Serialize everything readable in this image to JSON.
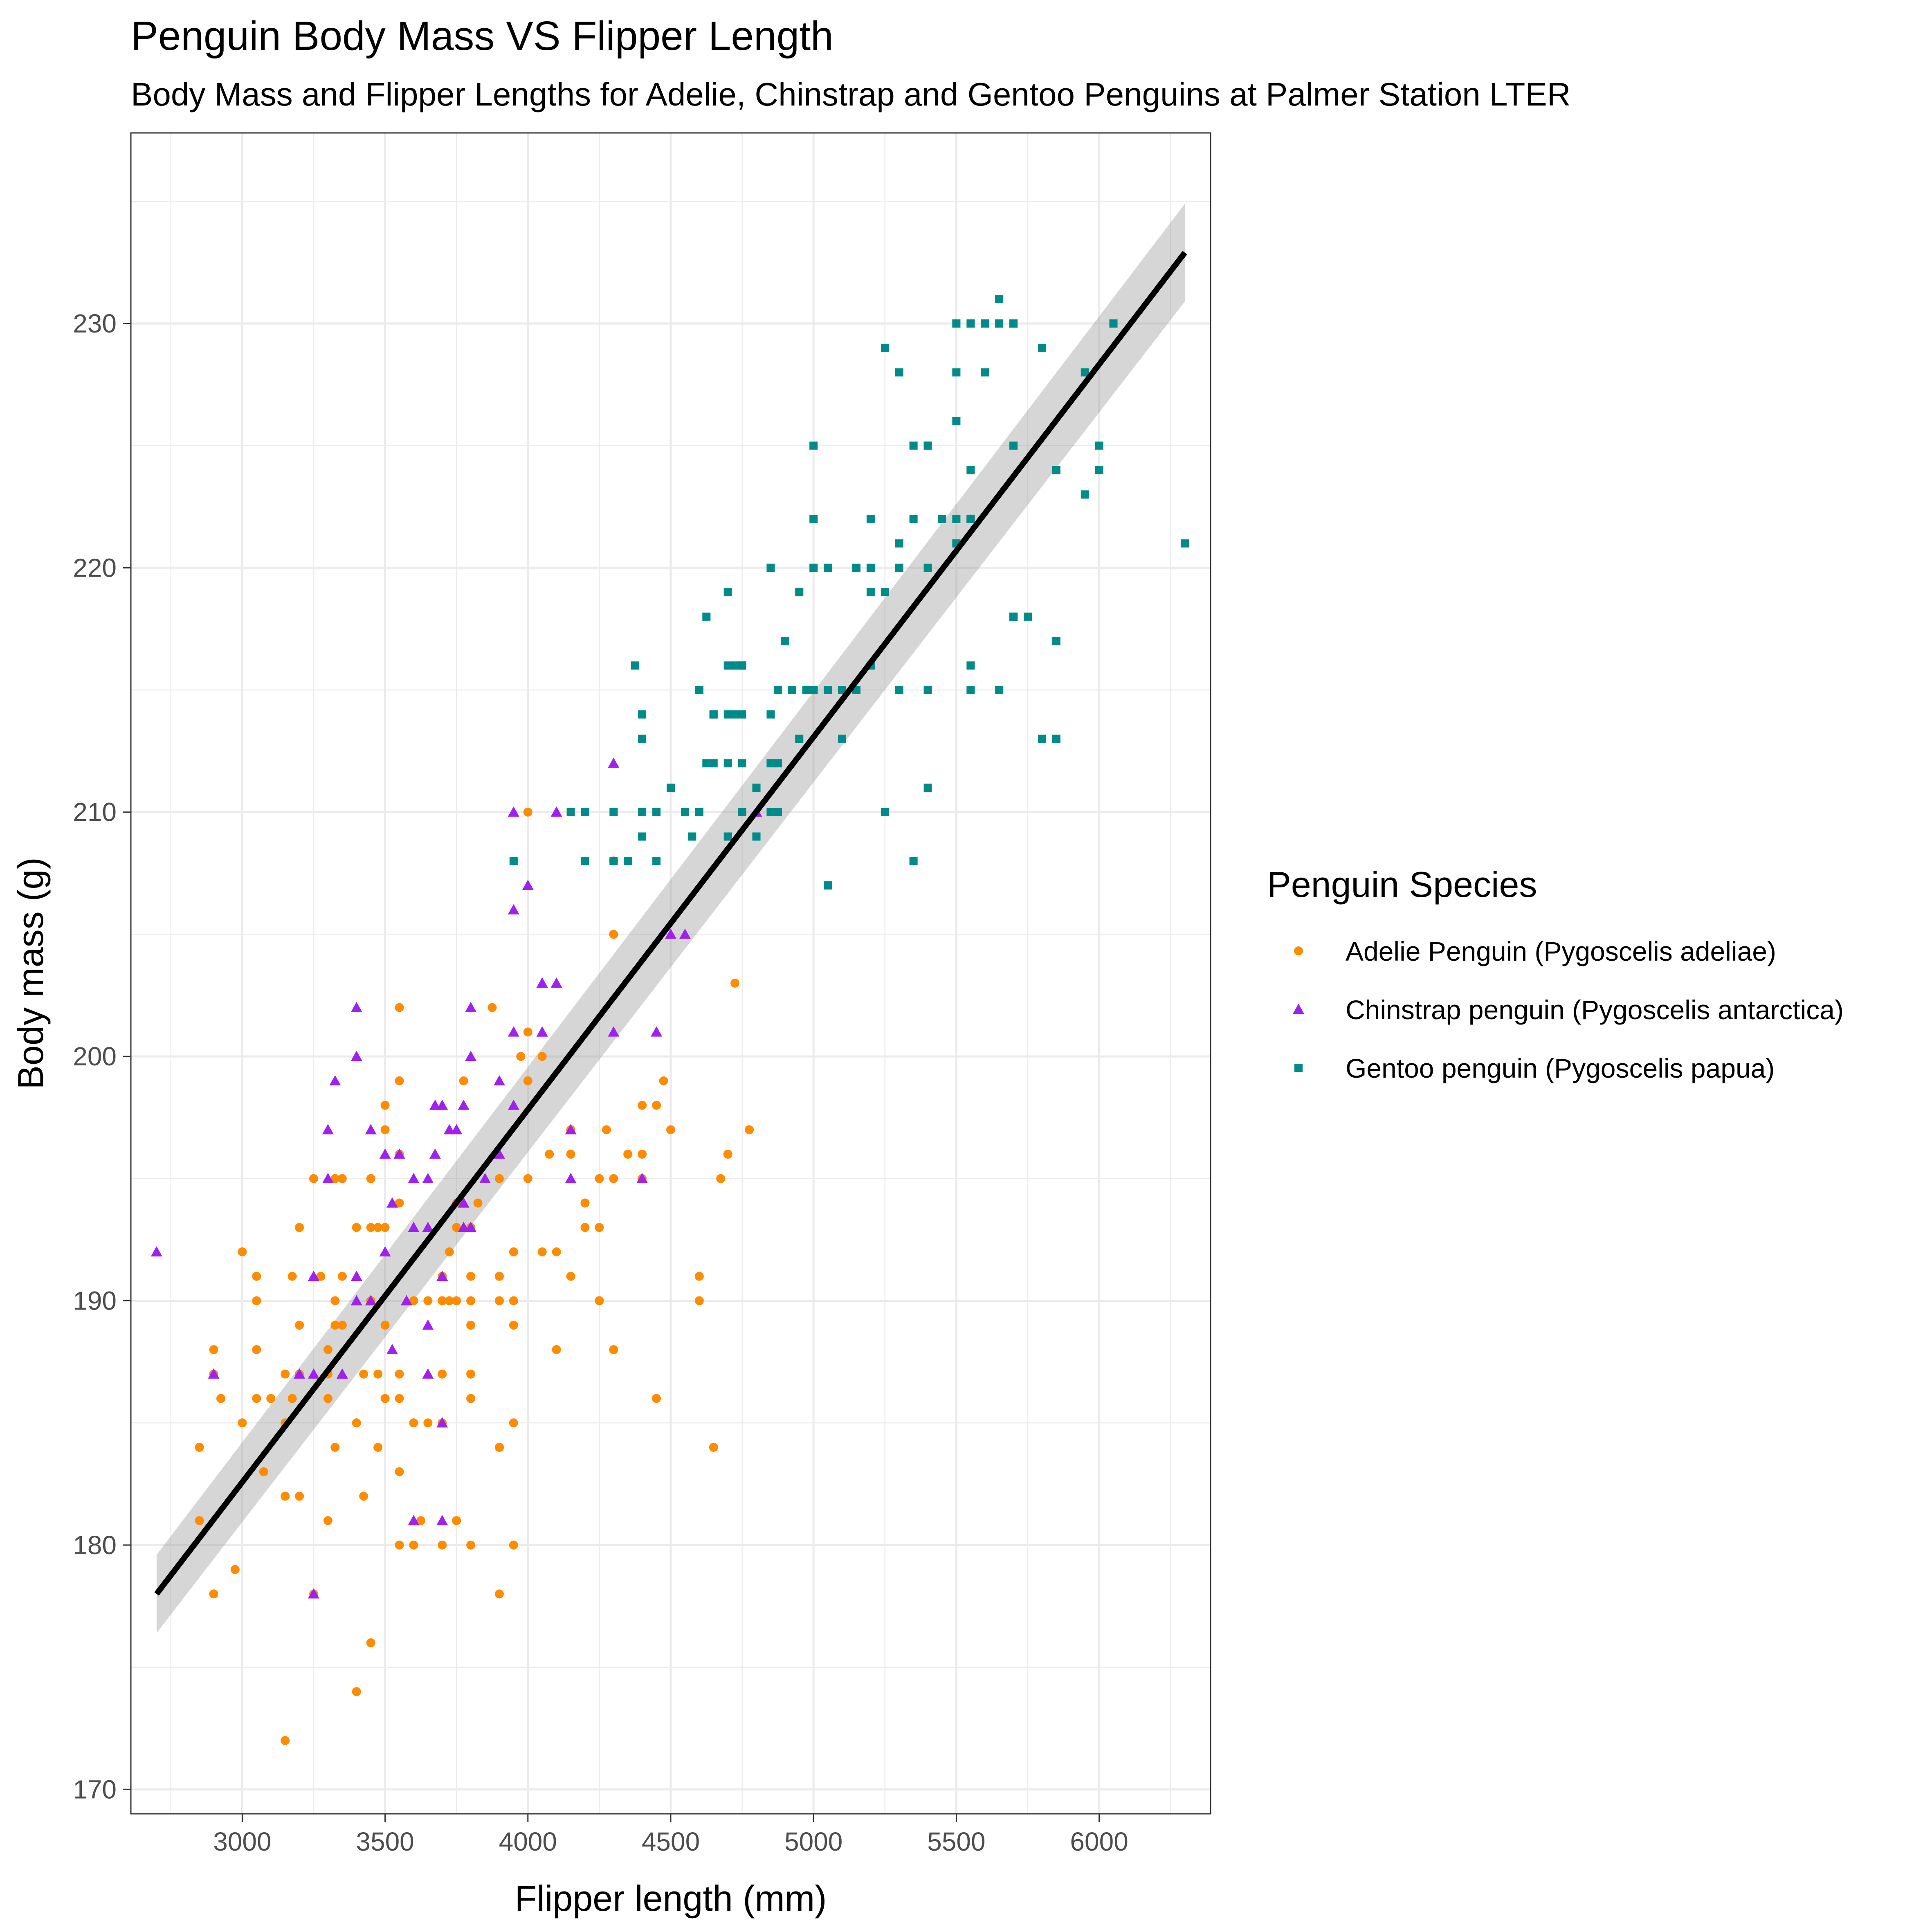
{
  "chart_data": {
    "type": "scatter",
    "title": "Penguin Body Mass VS Flipper Length",
    "subtitle": "Body Mass and Flipper Lengths for Adelie, Chinstrap and Gentoo Penguins at Palmer Station LTER",
    "xlabel": "Flipper length (mm)",
    "ylabel": "Body mass (g)",
    "xlim": [
      2610,
      6390
    ],
    "ylim": [
      169,
      237.8
    ],
    "x_ticks": [
      3000,
      3500,
      4000,
      4500,
      5000,
      5500,
      6000
    ],
    "y_ticks": [
      170,
      180,
      190,
      200,
      210,
      220,
      230
    ],
    "grid": true,
    "legend": {
      "title": "Penguin Species",
      "position": "right"
    },
    "fit_line": {
      "type": "linear",
      "x": [
        2700,
        6300
      ],
      "y": [
        178.0,
        232.9
      ],
      "ci_halfwidth": [
        1.6,
        2.0
      ],
      "color": "#000000",
      "band_color": "#999999"
    },
    "series": [
      {
        "name": "Adelie Penguin (Pygoscelis adeliae)",
        "color": "#FF8C00",
        "shape": "circle",
        "x": [
          3750,
          3800,
          3250,
          3450,
          3650,
          3625,
          4675,
          3475,
          4250,
          3300,
          3700,
          3200,
          3800,
          4400,
          3700,
          3450,
          4500,
          3325,
          4200,
          3400,
          3600,
          3800,
          3950,
          3800,
          3800,
          3550,
          3200,
          3150,
          3950,
          3250,
          3900,
          3300,
          3900,
          3325,
          4150,
          3950,
          3550,
          3300,
          4650,
          3150,
          3900,
          3100,
          4400,
          3000,
          4600,
          3425,
          2975,
          3450,
          4150,
          3500,
          4300,
          3450,
          4050,
          2900,
          3700,
          3550,
          3800,
          2850,
          3750,
          3150,
          4400,
          3600,
          4050,
          2850,
          3950,
          3350,
          4100,
          3050,
          4450,
          3600,
          3900,
          3550,
          4150,
          3700,
          4250,
          3700,
          3900,
          3550,
          4000,
          3200,
          4700,
          3800,
          4200,
          3350,
          3550,
          3800,
          3500,
          3950,
          3600,
          3550,
          4300,
          3400,
          4450,
          3300,
          4300,
          3700,
          4350,
          2900,
          4100,
          3725,
          4725,
          3075,
          4250,
          2925,
          3550,
          3750,
          3900,
          3175,
          4775,
          3825,
          4600,
          3200,
          4275,
          3900,
          4075,
          2900,
          3775,
          3350,
          3325,
          3150,
          3500,
          3450,
          3875,
          3050,
          4000,
          3275,
          4300,
          3050,
          4000,
          3325,
          3500,
          3500,
          4475,
          3425,
          3900,
          3175,
          3975,
          3400,
          4250,
          3400,
          3475,
          3050,
          3725,
          3000,
          3650,
          4250,
          3475,
          3450,
          3750,
          3700,
          4000
        ],
        "y": [
          181,
          186,
          195,
          193,
          190,
          181,
          195,
          193,
          190,
          186,
          180,
          182,
          191,
          198,
          185,
          195,
          197,
          184,
          194,
          174,
          180,
          189,
          185,
          180,
          187,
          183,
          187,
          172,
          180,
          178,
          178,
          188,
          184,
          195,
          196,
          190,
          180,
          181,
          184,
          182,
          195,
          186,
          196,
          185,
          190,
          182,
          179,
          190,
          191,
          186,
          188,
          190,
          200,
          187,
          191,
          186,
          193,
          181,
          194,
          185,
          195,
          185,
          192,
          184,
          192,
          195,
          188,
          190,
          198,
          190,
          190,
          196,
          197,
          190,
          195,
          191,
          184,
          187,
          195,
          189,
          196,
          187,
          193,
          191,
          194,
          190,
          189,
          189,
          190,
          202,
          205,
          185,
          186,
          187,
          208,
          190,
          196,
          178,
          192,
          192,
          203,
          183,
          190,
          186,
          199,
          190,
          191,
          186,
          197,
          194,
          191,
          193,
          197,
          191,
          196,
          188,
          199,
          189,
          189,
          187,
          198,
          176,
          202,
          186,
          199,
          191,
          195,
          191,
          210,
          190,
          197,
          193,
          199,
          187,
          190,
          191,
          200,
          185,
          193,
          193,
          187,
          188,
          190,
          192,
          185,
          190,
          184,
          195,
          193,
          187,
          201
        ]
      },
      {
        "name": "Chinstrap penguin (Pygoscelis antarctica)",
        "color": "#A020F0",
        "shape": "triangle",
        "x": [
          3500,
          3900,
          3650,
          3525,
          3725,
          3950,
          3250,
          3750,
          4150,
          3700,
          3800,
          3775,
          3700,
          4050,
          3575,
          4050,
          3300,
          3700,
          3450,
          4400,
          3600,
          3400,
          2900,
          3800,
          3300,
          4150,
          3400,
          3800,
          3700,
          4550,
          3200,
          4300,
          3350,
          4100,
          3600,
          3900,
          3850,
          4800,
          2700,
          4500,
          3950,
          3650,
          3550,
          3500,
          3675,
          4450,
          3400,
          4300,
          3250,
          3675,
          3325,
          3950,
          3600,
          4050,
          3350,
          3450,
          3250,
          4050,
          3800,
          3525,
          3950,
          3650,
          3650,
          4000,
          3400,
          3775,
          4100,
          3775
        ],
        "y": [
          192,
          196,
          193,
          188,
          197,
          198,
          178,
          197,
          195,
          198,
          193,
          194,
          185,
          201,
          190,
          201,
          197,
          181,
          190,
          195,
          181,
          191,
          187,
          193,
          195,
          197,
          200,
          200,
          191,
          205,
          187,
          201,
          187,
          203,
          195,
          199,
          195,
          210,
          192,
          205,
          210,
          187,
          196,
          196,
          196,
          201,
          190,
          212,
          187,
          198,
          199,
          201,
          193,
          203,
          187,
          197,
          191,
          203,
          202,
          194,
          206,
          189,
          195,
          207,
          202,
          193,
          210,
          198
        ]
      },
      {
        "name": "Gentoo penguin (Pygoscelis papua)",
        "color": "#008B8B",
        "shape": "square",
        "x": [
          4500,
          5700,
          4450,
          5700,
          5400,
          4550,
          4800,
          5200,
          4400,
          5150,
          4650,
          5550,
          4650,
          5850,
          4200,
          5850,
          4150,
          6300,
          4800,
          5350,
          5700,
          5000,
          4400,
          5050,
          5000,
          5100,
          5650,
          4600,
          5550,
          5250,
          4700,
          5050,
          6050,
          5150,
          5400,
          4950,
          5250,
          4350,
          5350,
          3950,
          5700,
          4300,
          4750,
          5550,
          4900,
          4200,
          5400,
          5100,
          5300,
          4850,
          5300,
          4400,
          5000,
          4900,
          5050,
          4300,
          5000,
          4450,
          5550,
          4200,
          5300,
          4400,
          5650,
          4700,
          5700,
          5800,
          4700,
          5550,
          4750,
          5000,
          5100,
          5200,
          4700,
          5800,
          4600,
          6000,
          4750,
          5950,
          4625,
          5450,
          4725,
          5350,
          4750,
          5600,
          4600,
          5300,
          4875,
          5550,
          4950,
          5400,
          4750,
          5650,
          4850,
          5200,
          4925,
          4875,
          4625,
          5250,
          4850,
          5600,
          4975,
          5500,
          4725,
          5500,
          4700,
          5500,
          4575,
          5500,
          5000,
          5950,
          4650,
          5500,
          4375,
          5850,
          4875,
          6000,
          4925,
          4850,
          5750,
          5200,
          5400
        ],
        "y": [
          211,
          230,
          210,
          218,
          215,
          210,
          211,
          219,
          209,
          215,
          214,
          216,
          214,
          213,
          210,
          217,
          210,
          221,
          209,
          222,
          218,
          215,
          213,
          215,
          215,
          215,
          215,
          215,
          215,
          210,
          209,
          207,
          230,
          220,
          220,
          213,
          219,
          208,
          208,
          208,
          225,
          210,
          216,
          222,
          217,
          210,
          225,
          213,
          215,
          210,
          220,
          210,
          225,
          217,
          220,
          208,
          220,
          208,
          224,
          208,
          221,
          214,
          231,
          219,
          230,
          229,
          214,
          222,
          214,
          222,
          215,
          222,
          212,
          213,
          210,
          224,
          212,
          228,
          212,
          222,
          216,
          225,
          216,
          228,
          215,
          228,
          210,
          230,
          219,
          225,
          210,
          230,
          214,
          216,
          215,
          212,
          218,
          229,
          212,
          230,
          215,
          226,
          214,
          228,
          216,
          230,
          209,
          222,
          215,
          223,
          212,
          221,
          216,
          224,
          215,
          225,
          215,
          220,
          218,
          220,
          211
        ]
      }
    ]
  }
}
